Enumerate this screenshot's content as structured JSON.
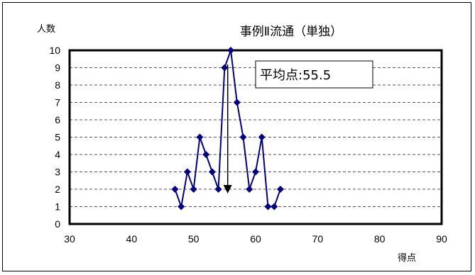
{
  "chart_data": {
    "type": "line",
    "title": "事例Ⅱ流通（単独）",
    "xlabel": "得点",
    "ylabel": "人数",
    "xlim": [
      30,
      90
    ],
    "ylim": [
      0,
      10
    ],
    "x_ticks": [
      "30",
      "40",
      "50",
      "60",
      "70",
      "80",
      "90"
    ],
    "y_ticks": [
      "0",
      "1",
      "2",
      "3",
      "4",
      "5",
      "6",
      "7",
      "8",
      "9",
      "10"
    ],
    "grid": "horizontal dashed",
    "legend": "none",
    "series": [
      {
        "x": [
          47,
          48,
          49,
          50,
          51,
          52,
          53,
          54,
          55,
          56,
          57,
          58,
          59,
          60,
          61,
          62,
          63,
          64
        ],
        "y": [
          2,
          1,
          3,
          2,
          5,
          4,
          3,
          2,
          9,
          10,
          7,
          5,
          2,
          3,
          5,
          1,
          1,
          2
        ],
        "color": "#000080"
      }
    ],
    "annotation": {
      "text": "平均点:55.5",
      "marker_x": 55.5,
      "marker_y": 2
    }
  }
}
